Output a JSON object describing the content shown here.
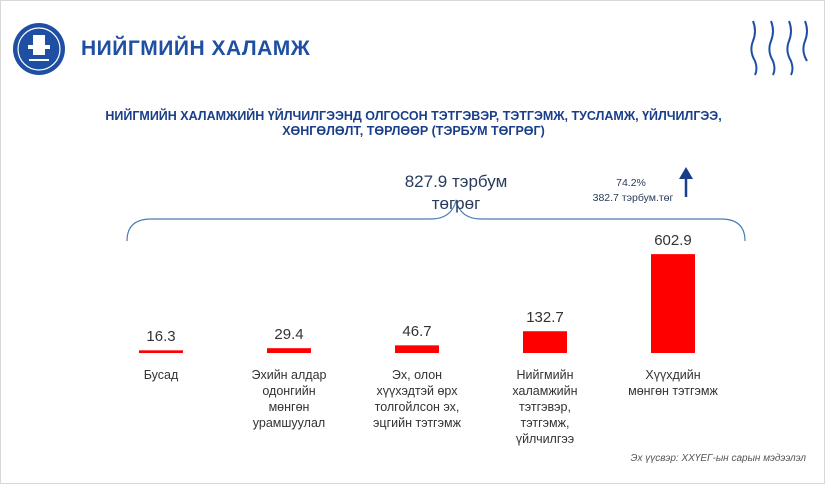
{
  "header": {
    "title": "НИЙГМИЙН ХАЛАМЖ"
  },
  "chart_data": {
    "type": "bar",
    "title": "НИЙГМИЙН ХАЛАМЖИЙН ҮЙЛЧИЛГЭЭНД ОЛГОСОН ТЭТГЭВЭР, ТЭТГЭМЖ, ТУСЛАМЖ, ҮЙЛЧИЛГЭЭ,\nХӨНГӨЛӨЛТ, ТӨРЛӨӨР (ТЭРБУМ ТӨГРӨГ)",
    "categories": [
      "Бусад",
      "Эхийн алдар\nодонгийн\nмөнгөн\nурамшуулал",
      "Эх, олон\nхүүхэдтэй өрх\nтолгойлсон эх,\nэцгийн тэтгэмж",
      "Нийгмийн\nхаламжийн\nтэтгэвэр,\nтэтгэмж,\nүйлчилгээ",
      "Хүүхдийн\nмөнгөн тэтгэмж"
    ],
    "values": [
      16.3,
      29.4,
      46.7,
      132.7,
      602.9
    ],
    "color": "#ff0000",
    "annotations": [
      "827.9 тэрбум\nтөгрөг",
      "74.2%",
      "382.7 тэрбум.төг"
    ],
    "source": "Эх үүсвэр: ХХҮЕГ-ын сарын мэдээлэл"
  }
}
